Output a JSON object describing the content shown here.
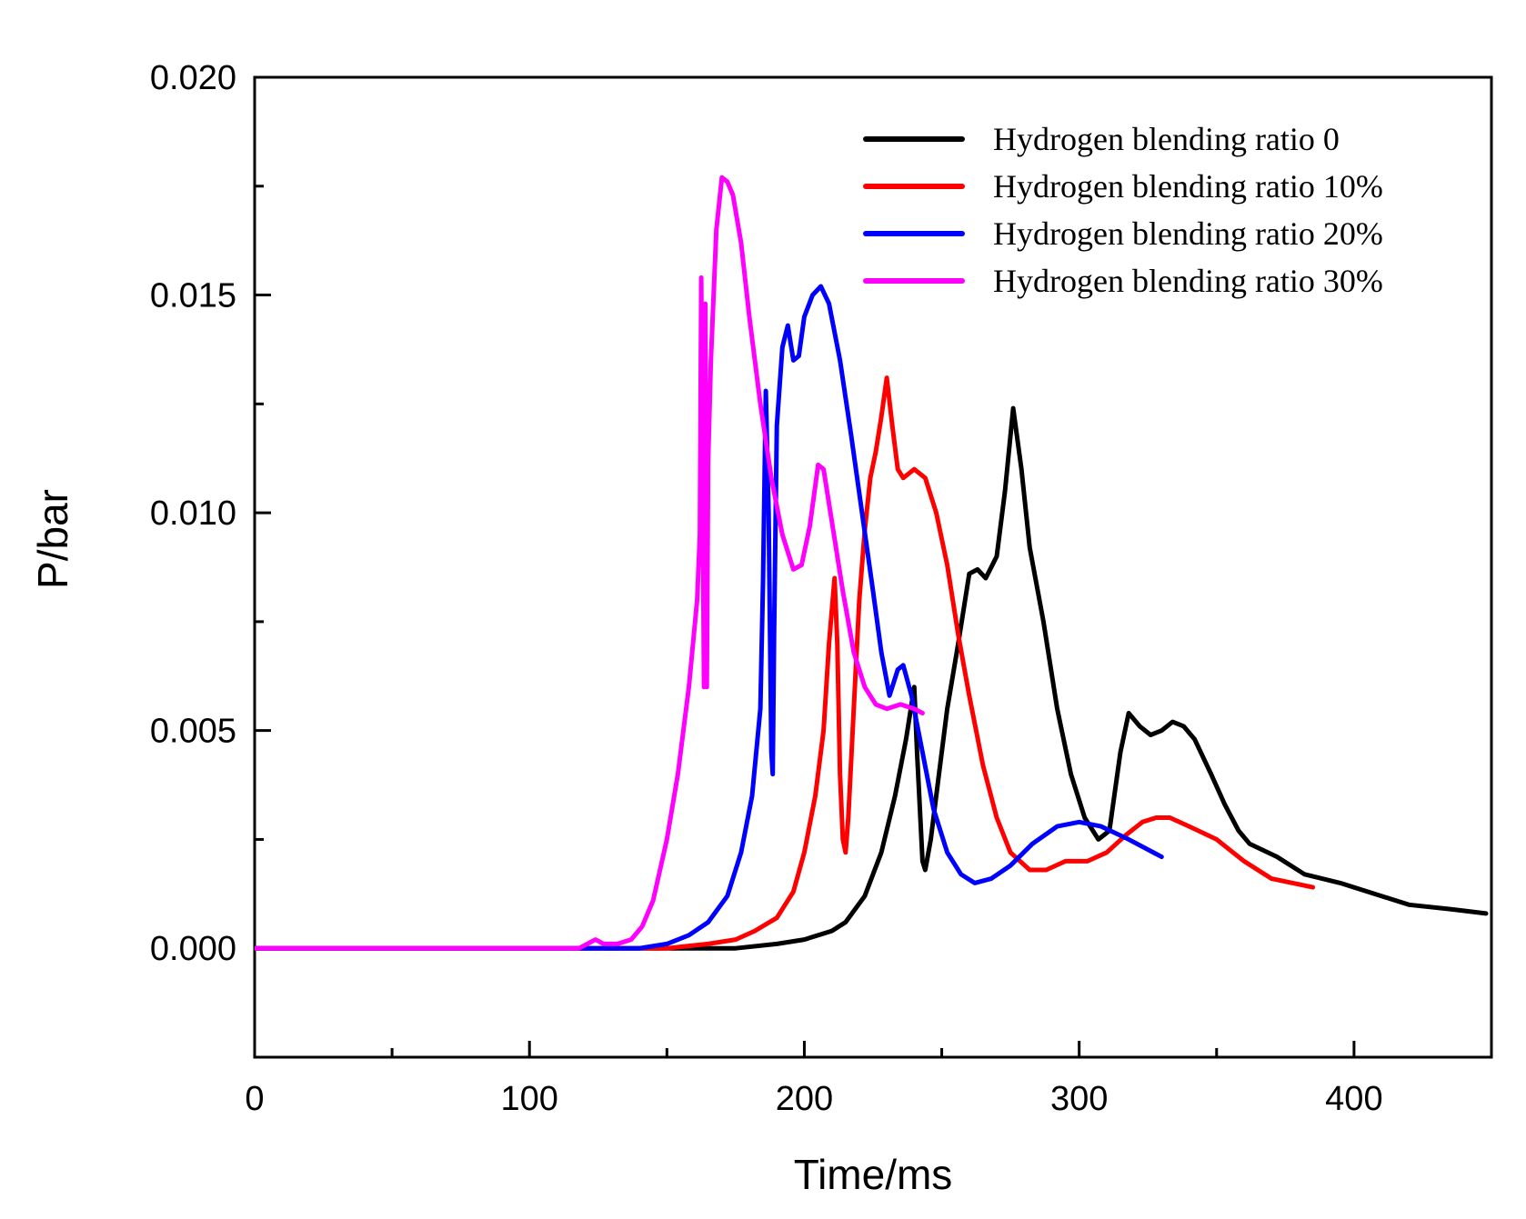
{
  "chart_data": {
    "type": "line",
    "title": "",
    "xlabel": "Time/ms",
    "ylabel": "P/bar",
    "xlim": [
      0,
      450
    ],
    "ylim": [
      -0.0025,
      0.02
    ],
    "x_ticks": [
      0,
      100,
      200,
      300,
      400
    ],
    "x_tick_labels": [
      "0",
      "100",
      "200",
      "300",
      "400"
    ],
    "x_minor_ticks": [
      50,
      150,
      250,
      350
    ],
    "y_ticks": [
      0.0,
      0.005,
      0.01,
      0.015,
      0.02
    ],
    "y_tick_labels": [
      "0.000",
      "0.005",
      "0.010",
      "0.015",
      "0.020"
    ],
    "y_minor_ticks": [
      -0.0025,
      0.0025,
      0.0075,
      0.0125,
      0.0175
    ],
    "grid": false,
    "legend_position": "top-right",
    "series": [
      {
        "name": "Hydrogen blending ratio 0",
        "color": "#000000",
        "points": [
          [
            0,
            0
          ],
          [
            150,
            0
          ],
          [
            175,
            0
          ],
          [
            190,
            0.0001
          ],
          [
            200,
            0.0002
          ],
          [
            210,
            0.0004
          ],
          [
            215,
            0.0006
          ],
          [
            222,
            0.0012
          ],
          [
            228,
            0.0022
          ],
          [
            233,
            0.0035
          ],
          [
            237,
            0.0048
          ],
          [
            240,
            0.006
          ],
          [
            241,
            0.0045
          ],
          [
            243,
            0.002
          ],
          [
            244,
            0.0018
          ],
          [
            246,
            0.0025
          ],
          [
            249,
            0.004
          ],
          [
            252,
            0.0055
          ],
          [
            256,
            0.007
          ],
          [
            260,
            0.0086
          ],
          [
            263,
            0.0087
          ],
          [
            266,
            0.0085
          ],
          [
            270,
            0.009
          ],
          [
            273,
            0.0105
          ],
          [
            276,
            0.0124
          ],
          [
            279,
            0.011
          ],
          [
            282,
            0.0092
          ],
          [
            287,
            0.0075
          ],
          [
            292,
            0.0055
          ],
          [
            297,
            0.004
          ],
          [
            302,
            0.003
          ],
          [
            307,
            0.0025
          ],
          [
            311,
            0.0027
          ],
          [
            315,
            0.0045
          ],
          [
            318,
            0.0054
          ],
          [
            322,
            0.0051
          ],
          [
            326,
            0.0049
          ],
          [
            330,
            0.005
          ],
          [
            334,
            0.0052
          ],
          [
            338,
            0.0051
          ],
          [
            342,
            0.0048
          ],
          [
            348,
            0.004
          ],
          [
            353,
            0.0033
          ],
          [
            358,
            0.0027
          ],
          [
            362,
            0.0024
          ],
          [
            372,
            0.0021
          ],
          [
            382,
            0.0017
          ],
          [
            395,
            0.0015
          ],
          [
            410,
            0.0012
          ],
          [
            420,
            0.001
          ],
          [
            435,
            0.0009
          ],
          [
            448,
            0.0008
          ]
        ]
      },
      {
        "name": "Hydrogen blending ratio 10%",
        "color": "#ff0000",
        "points": [
          [
            0,
            0
          ],
          [
            130,
            0
          ],
          [
            150,
            0
          ],
          [
            165,
            0.0001
          ],
          [
            175,
            0.0002
          ],
          [
            182,
            0.0004
          ],
          [
            190,
            0.0007
          ],
          [
            196,
            0.0013
          ],
          [
            200,
            0.0022
          ],
          [
            204,
            0.0035
          ],
          [
            207,
            0.005
          ],
          [
            209,
            0.007
          ],
          [
            211,
            0.0085
          ],
          [
            212,
            0.007
          ],
          [
            213,
            0.004
          ],
          [
            214,
            0.0025
          ],
          [
            215,
            0.0022
          ],
          [
            216,
            0.003
          ],
          [
            218,
            0.0055
          ],
          [
            220,
            0.008
          ],
          [
            222,
            0.0096
          ],
          [
            224,
            0.0108
          ],
          [
            226,
            0.0114
          ],
          [
            228,
            0.0122
          ],
          [
            230,
            0.0131
          ],
          [
            232,
            0.012
          ],
          [
            234,
            0.011
          ],
          [
            236,
            0.0108
          ],
          [
            240,
            0.011
          ],
          [
            244,
            0.0108
          ],
          [
            248,
            0.01
          ],
          [
            252,
            0.0088
          ],
          [
            256,
            0.0072
          ],
          [
            260,
            0.0058
          ],
          [
            265,
            0.0042
          ],
          [
            270,
            0.003
          ],
          [
            275,
            0.0022
          ],
          [
            282,
            0.0018
          ],
          [
            288,
            0.0018
          ],
          [
            295,
            0.002
          ],
          [
            303,
            0.002
          ],
          [
            310,
            0.0022
          ],
          [
            317,
            0.0026
          ],
          [
            323,
            0.0029
          ],
          [
            328,
            0.003
          ],
          [
            333,
            0.003
          ],
          [
            340,
            0.0028
          ],
          [
            350,
            0.0025
          ],
          [
            360,
            0.002
          ],
          [
            370,
            0.0016
          ],
          [
            385,
            0.0014
          ]
        ]
      },
      {
        "name": "Hydrogen blending ratio 20%",
        "color": "#0000ff",
        "points": [
          [
            0,
            0
          ],
          [
            120,
            0
          ],
          [
            140,
            0
          ],
          [
            150,
            0.0001
          ],
          [
            158,
            0.0003
          ],
          [
            165,
            0.0006
          ],
          [
            172,
            0.0012
          ],
          [
            177,
            0.0022
          ],
          [
            181,
            0.0035
          ],
          [
            184,
            0.0055
          ],
          [
            185,
            0.0085
          ],
          [
            186,
            0.0128
          ],
          [
            187,
            0.01
          ],
          [
            188,
            0.0045
          ],
          [
            188.5,
            0.004
          ],
          [
            189,
            0.0072
          ],
          [
            190,
            0.012
          ],
          [
            192,
            0.0138
          ],
          [
            194,
            0.0143
          ],
          [
            196,
            0.0135
          ],
          [
            198,
            0.0136
          ],
          [
            200,
            0.0145
          ],
          [
            203,
            0.015
          ],
          [
            206,
            0.0152
          ],
          [
            209,
            0.0148
          ],
          [
            213,
            0.0135
          ],
          [
            217,
            0.0118
          ],
          [
            221,
            0.01
          ],
          [
            225,
            0.0082
          ],
          [
            228,
            0.0068
          ],
          [
            231,
            0.0058
          ],
          [
            234,
            0.0064
          ],
          [
            236,
            0.0065
          ],
          [
            239,
            0.0058
          ],
          [
            243,
            0.0045
          ],
          [
            247,
            0.0032
          ],
          [
            252,
            0.0022
          ],
          [
            257,
            0.0017
          ],
          [
            262,
            0.0015
          ],
          [
            268,
            0.0016
          ],
          [
            275,
            0.0019
          ],
          [
            283,
            0.0024
          ],
          [
            292,
            0.0028
          ],
          [
            300,
            0.0029
          ],
          [
            308,
            0.0028
          ],
          [
            318,
            0.0025
          ],
          [
            330,
            0.0021
          ]
        ]
      },
      {
        "name": "Hydrogen blending ratio 30%",
        "color": "#ff00ff",
        "points": [
          [
            0,
            0
          ],
          [
            100,
            0
          ],
          [
            118,
            0
          ],
          [
            121,
            0.0001
          ],
          [
            124,
            0.0002
          ],
          [
            127,
            0.0001
          ],
          [
            132,
            0.0001
          ],
          [
            137,
            0.0002
          ],
          [
            141,
            0.0005
          ],
          [
            145,
            0.0011
          ],
          [
            150,
            0.0025
          ],
          [
            154,
            0.004
          ],
          [
            158,
            0.006
          ],
          [
            161,
            0.008
          ],
          [
            162,
            0.0095
          ],
          [
            162.5,
            0.0154
          ],
          [
            163,
            0.0108
          ],
          [
            163.5,
            0.006
          ],
          [
            164,
            0.0148
          ],
          [
            164.5,
            0.006
          ],
          [
            165,
            0.0112
          ],
          [
            166,
            0.0135
          ],
          [
            168,
            0.0165
          ],
          [
            170,
            0.0177
          ],
          [
            172,
            0.0176
          ],
          [
            174,
            0.0173
          ],
          [
            177,
            0.0162
          ],
          [
            180,
            0.0145
          ],
          [
            184,
            0.0125
          ],
          [
            188,
            0.0108
          ],
          [
            192,
            0.0095
          ],
          [
            196,
            0.0087
          ],
          [
            199,
            0.0088
          ],
          [
            202,
            0.0097
          ],
          [
            205,
            0.0111
          ],
          [
            207,
            0.011
          ],
          [
            210,
            0.0098
          ],
          [
            214,
            0.0082
          ],
          [
            218,
            0.0068
          ],
          [
            222,
            0.006
          ],
          [
            226,
            0.0056
          ],
          [
            230,
            0.0055
          ],
          [
            235,
            0.0056
          ],
          [
            240,
            0.0055
          ],
          [
            243,
            0.0054
          ]
        ]
      }
    ]
  }
}
